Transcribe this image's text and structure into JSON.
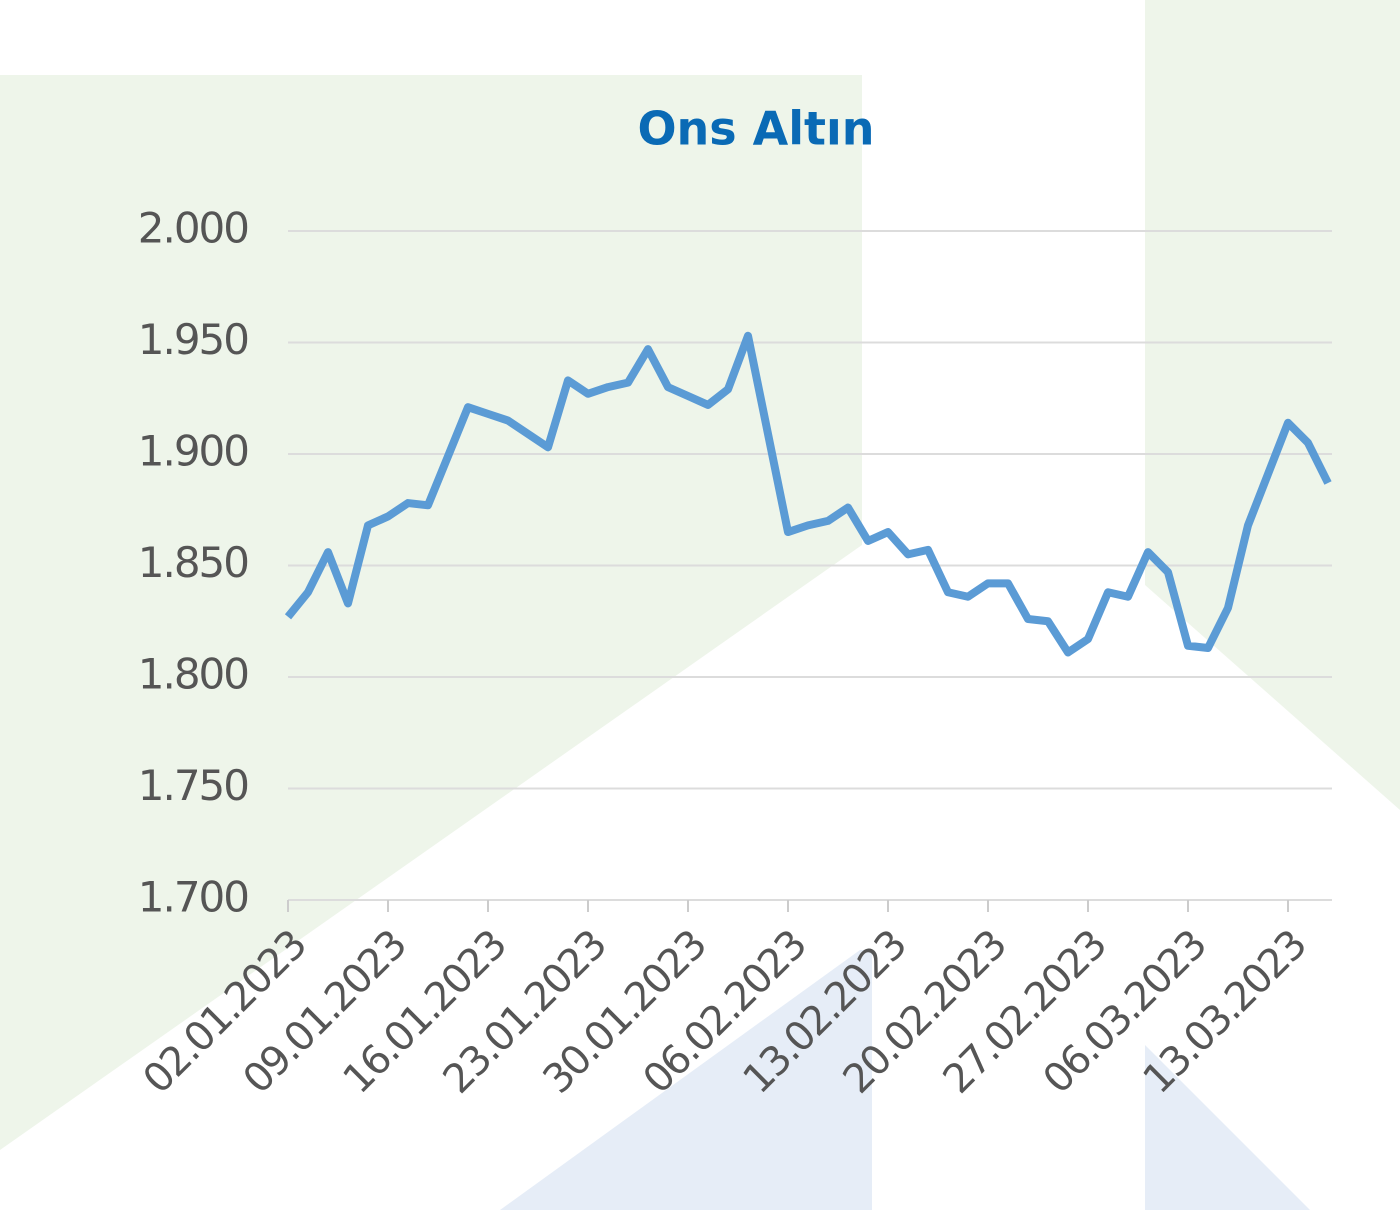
{
  "chart_data": {
    "type": "line",
    "title": "Ons Altın",
    "categories": [
      "02.01.2023",
      null,
      null,
      null,
      null,
      "09.01.2023",
      null,
      null,
      null,
      null,
      "16.01.2023",
      null,
      null,
      null,
      null,
      "23.01.2023",
      null,
      null,
      null,
      null,
      "30.01.2023",
      null,
      null,
      null,
      null,
      "06.02.2023",
      null,
      null,
      null,
      null,
      "13.02.2023",
      null,
      null,
      null,
      null,
      "20.02.2023",
      null,
      null,
      null,
      null,
      "27.02.2023",
      null,
      null,
      null,
      null,
      "06.03.2023",
      null,
      null,
      null,
      null,
      "13.03.2023",
      null,
      null
    ],
    "series": [
      {
        "name": "Ons Altın",
        "color": "#5b9bd5",
        "values": [
          1827,
          1838,
          1856,
          1833,
          1868,
          1872,
          1878,
          1877,
          1899,
          1921,
          1918,
          1915,
          1909,
          1903,
          1933,
          1927,
          1930,
          1932,
          1947,
          1930,
          1926,
          1922,
          1929,
          1953,
          1909,
          1865,
          1868,
          1870,
          1876,
          1861,
          1865,
          1855,
          1857,
          1838,
          1836,
          1842,
          1842,
          1826,
          1825,
          1811,
          1817,
          1838,
          1836,
          1856,
          1847,
          1814,
          1813,
          1831,
          1868,
          1891,
          1914,
          1905,
          1887
        ]
      }
    ],
    "ylim": [
      1700,
      2000
    ],
    "yticks": [
      {
        "value": 1700,
        "label": "1.700"
      },
      {
        "value": 1750,
        "label": "1.750"
      },
      {
        "value": 1800,
        "label": "1.800"
      },
      {
        "value": 1850,
        "label": "1.850"
      },
      {
        "value": 1900,
        "label": "1.900"
      },
      {
        "value": 1950,
        "label": "1.950"
      },
      {
        "value": 2000,
        "label": "2.000"
      }
    ],
    "grid": true
  }
}
